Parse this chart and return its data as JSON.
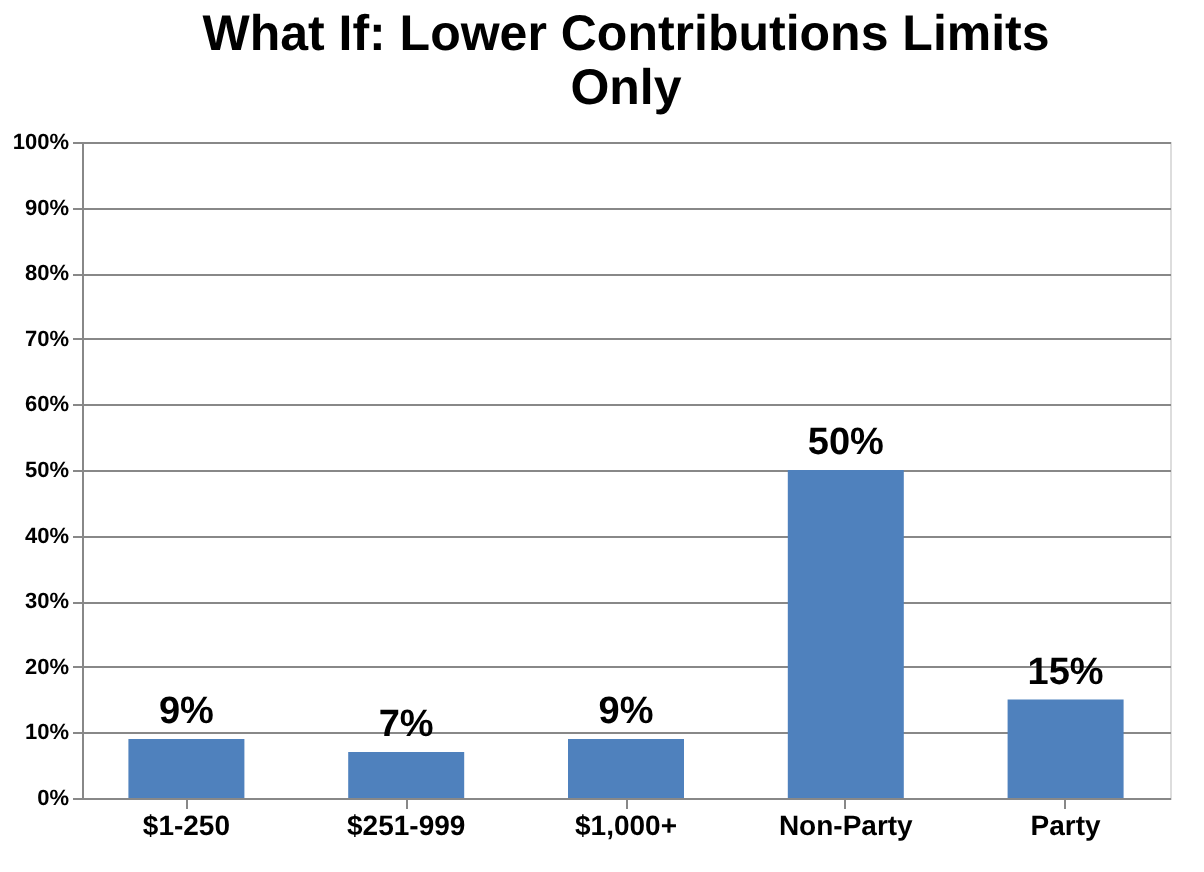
{
  "chart_data": {
    "type": "bar",
    "title": "What If: Lower Contributions Limits Only",
    "categories": [
      "$1-250",
      "$251-999",
      "$1,000+",
      "Non-Party",
      "Party"
    ],
    "values": [
      9,
      7,
      9,
      50,
      15
    ],
    "value_labels": [
      "9%",
      "7%",
      "9%",
      "50%",
      "15%"
    ],
    "color": "#4f81bd",
    "ylim": [
      0,
      100
    ],
    "yticks": [
      {
        "value": 0,
        "label": "0%"
      },
      {
        "value": 10,
        "label": "10%"
      },
      {
        "value": 20,
        "label": "20%"
      },
      {
        "value": 30,
        "label": "30%"
      },
      {
        "value": 40,
        "label": "40%"
      },
      {
        "value": 50,
        "label": "50%"
      },
      {
        "value": 60,
        "label": "60%"
      },
      {
        "value": 70,
        "label": "70%"
      },
      {
        "value": 80,
        "label": "80%"
      },
      {
        "value": 90,
        "label": "90%"
      },
      {
        "value": 100,
        "label": "100%"
      }
    ],
    "grid": "y"
  }
}
